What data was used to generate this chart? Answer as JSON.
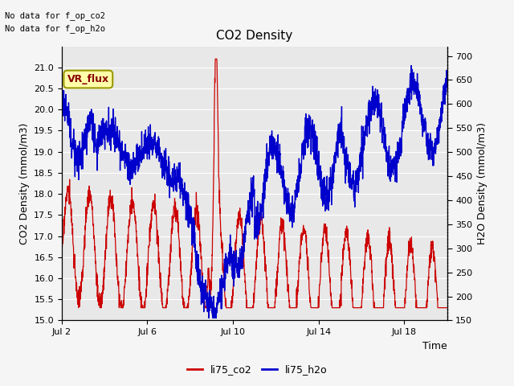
{
  "title": "CO2 Density",
  "xlabel": "Time",
  "ylabel_left": "CO2 Density (mmol/m3)",
  "ylabel_right": "H2O Density (mmol/m3)",
  "ylim_left": [
    15.0,
    21.5
  ],
  "ylim_right": [
    150,
    720
  ],
  "yticks_left": [
    15.0,
    15.5,
    16.0,
    16.5,
    17.0,
    17.5,
    18.0,
    18.5,
    19.0,
    19.5,
    20.0,
    20.5,
    21.0
  ],
  "yticks_right": [
    150,
    200,
    250,
    300,
    350,
    400,
    450,
    500,
    550,
    600,
    650,
    700
  ],
  "xtick_positions": [
    0,
    4,
    8,
    12,
    16
  ],
  "xtick_labels": [
    "Jul 2",
    "Jul 6",
    "Jul 10",
    "Jul 14",
    "Jul 18"
  ],
  "xlim": [
    0,
    18
  ],
  "no_data_text1": "No data for f_op_co2",
  "no_data_text2": "No data for f_op_h2o",
  "vr_flux_label": "VR_flux",
  "legend_labels": [
    "li75_co2",
    "li75_h2o"
  ],
  "line_colors": [
    "#cc0000",
    "#0000cc"
  ],
  "background_color": "#e8e8e8",
  "fig_background": "#f5f5f5",
  "grid_color": "#ffffff",
  "title_fontsize": 11,
  "label_fontsize": 9,
  "tick_fontsize": 8,
  "legend_fontsize": 9
}
